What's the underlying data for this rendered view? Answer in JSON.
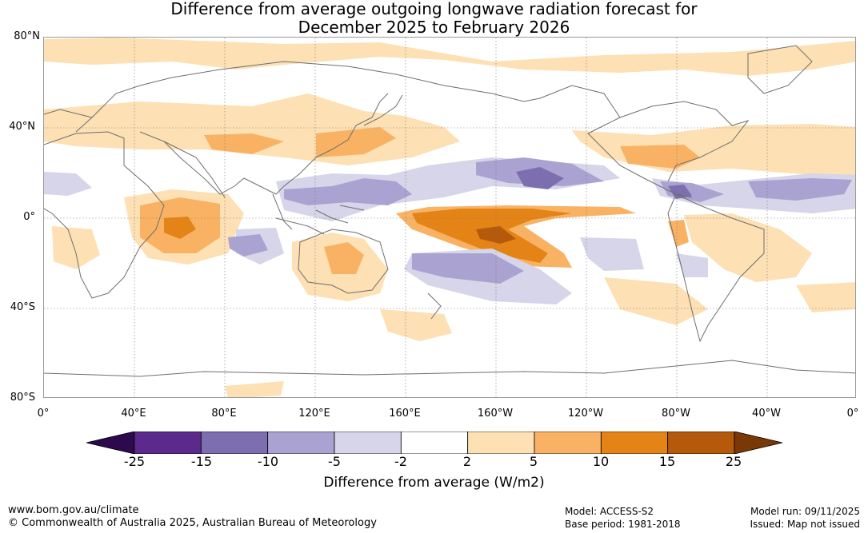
{
  "title": {
    "line1": "Difference from average outgoing longwave radiation forecast for",
    "line2": "December 2025 to February 2026"
  },
  "map": {
    "lat_labels": [
      "80°N",
      "40°N",
      "0°",
      "40°S",
      "80°S"
    ],
    "lon_labels": [
      "0°",
      "40°E",
      "80°E",
      "120°E",
      "160°E",
      "160°W",
      "120°W",
      "80°W",
      "40°W",
      "0°"
    ]
  },
  "colorbar": {
    "title": "Difference from average (W/m2)",
    "tick_labels": [
      "-25",
      "-15",
      "-10",
      "-5",
      "-2",
      "2",
      "5",
      "10",
      "15",
      "25"
    ],
    "colors": [
      "#2d0a4e",
      "#5b2a8c",
      "#7d6eb0",
      "#aaa2d0",
      "#d6d5ea",
      "#ffffff",
      "#fde0b3",
      "#f9b264",
      "#e58416",
      "#b45a0a",
      "#7a3806"
    ]
  },
  "footer": {
    "website": "www.bom.gov.au/climate",
    "copyright": "© Commonwealth of Australia 2025, Australian Bureau of Meteorology",
    "model": "Model: ACCESS-S2",
    "base_period": "Base period: 1981-2018",
    "model_run": "Model run: 09/11/2025",
    "issued": "Issued: Map not issued"
  }
}
